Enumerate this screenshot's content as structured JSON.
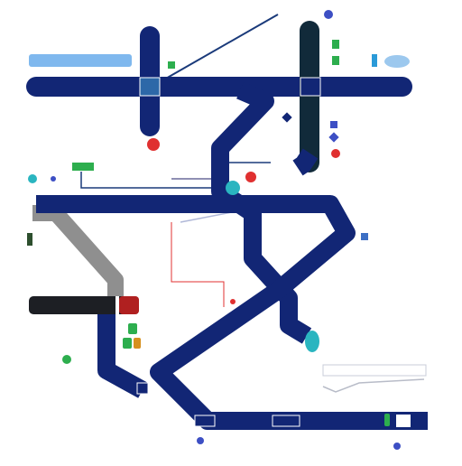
{
  "colors": {
    "navy": "#122675",
    "dark_teal": "#112a3a",
    "grey": "#8f8f8f",
    "red": "#e03030",
    "green": "#2dae4e",
    "teal": "#2ab5c0",
    "blue": "#3d4fc4",
    "light_blue": "#7fb8ee",
    "black_box": "#1d1f24"
  },
  "labels": {
    "top_right_1": "",
    "top_right_2": "",
    "top_left_banner": "",
    "mid_left_1": "",
    "mid_right_1": "",
    "mid_right_2": "",
    "mid_right_3": "",
    "center_label": "",
    "right_label": "",
    "black_box": "",
    "bottom_left_1": "",
    "bottom_left_2": "",
    "bottom_mid_1": "",
    "bottom_mid_2": "",
    "station_right": "",
    "bottom_right": "",
    "bottom_label": ""
  }
}
